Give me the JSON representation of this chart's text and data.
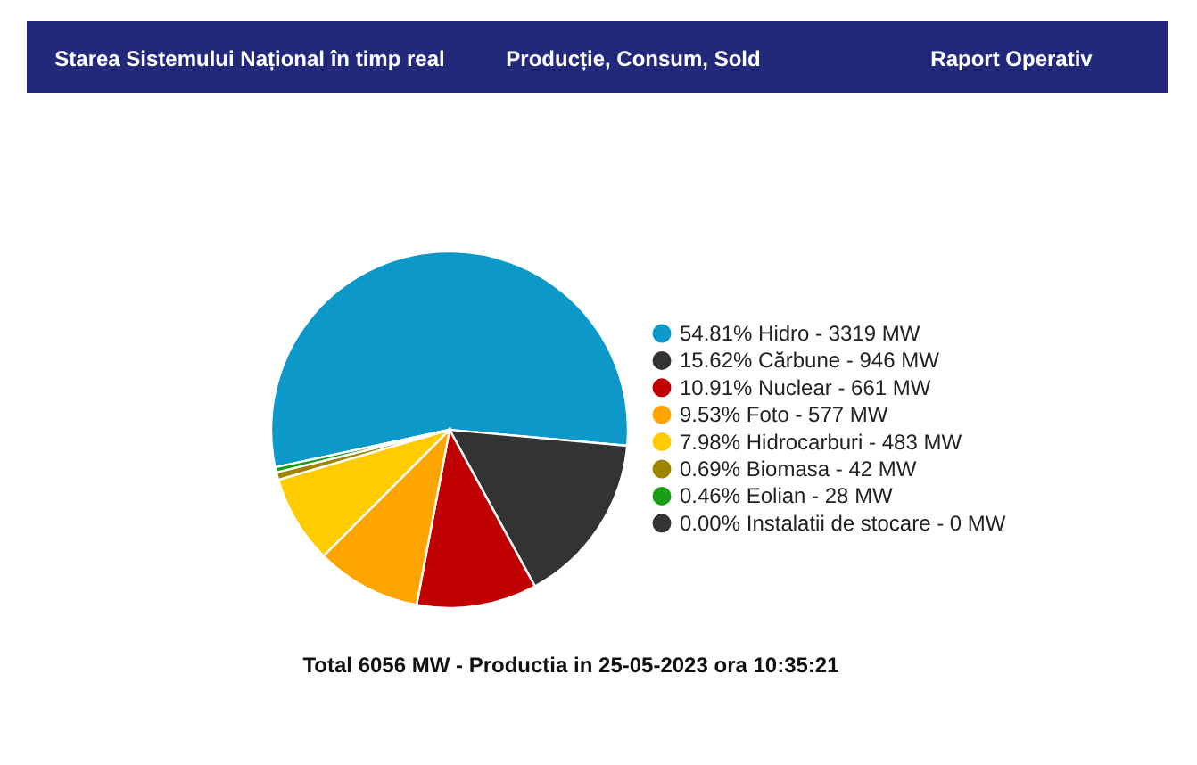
{
  "chart_data": {
    "type": "pie",
    "categories": [
      "54.81% Hidro - 3319 MW",
      "15.62% Cărbune - 946 MW",
      "10.91% Nuclear - 661 MW",
      "9.53% Foto - 577 MW",
      "7.98% Hidrocarburi - 483 MW",
      "0.69% Biomasa - 42 MW",
      "0.46% Eolian - 28 MW",
      "0.00% Instalatii de stocare - 0 MW"
    ],
    "values": [
      54.81,
      15.62,
      10.91,
      9.53,
      7.98,
      0.69,
      0.46,
      0.0
    ],
    "colors": [
      "#0c98c9",
      "#333333",
      "#c00000",
      "#ffa500",
      "#ffcc00",
      "#9e8500",
      "#1a9e1a",
      "#333333"
    ],
    "legend": "right",
    "annotations": [
      "Starea Sistemului Național în timp real",
      "Producție, Consum, Sold",
      "Raport Operativ",
      "Total 6056 MW - Productia in 25-05-2023 ora 10:35:21"
    ]
  }
}
